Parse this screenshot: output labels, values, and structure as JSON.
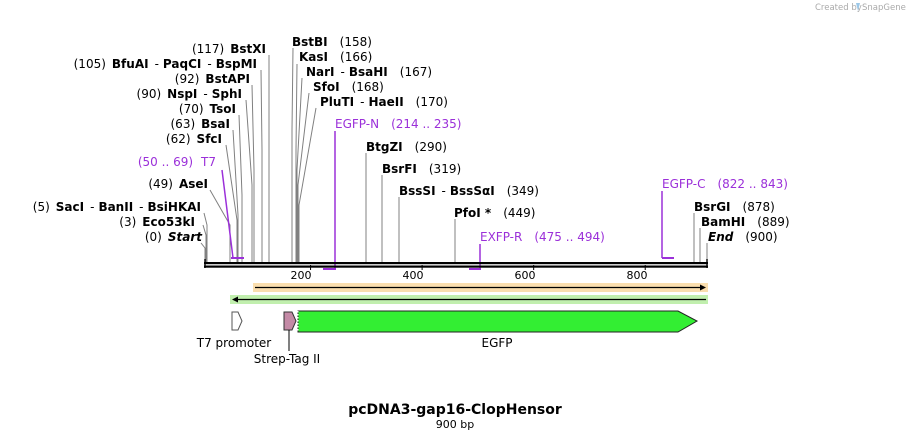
{
  "credit": {
    "prefix": "Created by",
    "product": "SnapGene"
  },
  "plasmid": {
    "name": "pcDNA3-gap16-ClopHensor",
    "length_label": "900 bp",
    "length": 900
  },
  "axis_ticks": [
    "200",
    "400",
    "600",
    "800"
  ],
  "axis_tick_values": [
    200,
    400,
    600,
    800
  ],
  "sites": [
    {
      "pos": 0,
      "parts": [
        [
          "(0)",
          "pos"
        ],
        [
          "Start",
          "italic"
        ]
      ]
    },
    {
      "pos": 3,
      "parts": [
        [
          "(3)",
          "pos"
        ],
        [
          "Eco53kI",
          "enz"
        ]
      ]
    },
    {
      "pos": 5,
      "parts": [
        [
          "(5)",
          "pos"
        ],
        [
          "SacI",
          "enz"
        ],
        [
          "-",
          "pos"
        ],
        [
          "BanII",
          "enz"
        ],
        [
          "-",
          "pos"
        ],
        [
          "BsiHKAI",
          "enz"
        ]
      ]
    },
    {
      "pos": 49,
      "parts": [
        [
          "(49)",
          "pos"
        ],
        [
          "AseI",
          "enz"
        ]
      ]
    },
    {
      "pos": 62,
      "parts": [
        [
          "(62)",
          "pos"
        ],
        [
          "SfcI",
          "enz"
        ]
      ]
    },
    {
      "pos": 63,
      "parts": [
        [
          "(63)",
          "pos"
        ],
        [
          "BsaI",
          "enz"
        ]
      ]
    },
    {
      "pos": 70,
      "parts": [
        [
          "(70)",
          "pos"
        ],
        [
          "TsoI",
          "enz"
        ]
      ]
    },
    {
      "pos": 90,
      "parts": [
        [
          "(90)",
          "pos"
        ],
        [
          "NspI",
          "enz"
        ],
        [
          "-",
          "pos"
        ],
        [
          "SphI",
          "enz"
        ]
      ]
    },
    {
      "pos": 92,
      "parts": [
        [
          "(92)",
          "pos"
        ],
        [
          "BstAPI",
          "enz"
        ]
      ]
    },
    {
      "pos": 105,
      "parts": [
        [
          "(105)",
          "pos"
        ],
        [
          "BfuAI",
          "enz"
        ],
        [
          "-",
          "pos"
        ],
        [
          "PaqCI",
          "enz"
        ],
        [
          "-",
          "pos"
        ],
        [
          "BspMI",
          "enz"
        ]
      ]
    },
    {
      "pos": 117,
      "parts": [
        [
          "(117)",
          "pos"
        ],
        [
          "BstXI",
          "enz"
        ]
      ]
    },
    {
      "pos": 158,
      "parts": [
        [
          "BstBI",
          "enz"
        ],
        [
          "(158)",
          "pos"
        ]
      ]
    },
    {
      "pos": 166,
      "parts": [
        [
          "KasI",
          "enz"
        ],
        [
          "(166)",
          "pos"
        ]
      ]
    },
    {
      "pos": 167,
      "parts": [
        [
          "NarI",
          "enz"
        ],
        [
          "-",
          "pos"
        ],
        [
          "BsaHI",
          "enz"
        ],
        [
          "(167)",
          "pos"
        ]
      ]
    },
    {
      "pos": 168,
      "parts": [
        [
          "SfoI",
          "enz"
        ],
        [
          "(168)",
          "pos"
        ]
      ]
    },
    {
      "pos": 170,
      "parts": [
        [
          "PluTI",
          "enz"
        ],
        [
          "-",
          "pos"
        ],
        [
          "HaeII",
          "enz"
        ],
        [
          "(170)",
          "pos"
        ]
      ]
    },
    {
      "pos": 290,
      "parts": [
        [
          "BtgZI",
          "enz"
        ],
        [
          "(290)",
          "pos"
        ]
      ]
    },
    {
      "pos": 319,
      "parts": [
        [
          "BsrFI",
          "enz"
        ],
        [
          "(319)",
          "pos"
        ]
      ]
    },
    {
      "pos": 349,
      "parts": [
        [
          "BssSI",
          "enz"
        ],
        [
          "-",
          "pos"
        ],
        [
          "BssSαI",
          "enz"
        ],
        [
          "(349)",
          "pos"
        ]
      ]
    },
    {
      "pos": 449,
      "parts": [
        [
          "PfoI *",
          "enz"
        ],
        [
          "(449)",
          "pos"
        ]
      ]
    },
    {
      "pos": 878,
      "parts": [
        [
          "BsrGI",
          "enz"
        ],
        [
          "(878)",
          "pos"
        ]
      ]
    },
    {
      "pos": 889,
      "parts": [
        [
          "BamHI",
          "enz"
        ],
        [
          "(889)",
          "pos"
        ]
      ]
    },
    {
      "pos": 900,
      "parts": [
        [
          "End",
          "enz italic"
        ],
        [
          "(900)",
          "pos"
        ]
      ]
    }
  ],
  "primers": [
    {
      "name": "T7",
      "range": "(50 .. 69)",
      "start": 50,
      "end": 69
    },
    {
      "name": "EGFP-N",
      "range": "(214 .. 235)",
      "start": 214,
      "end": 235
    },
    {
      "name": "EXFP-R",
      "range": "(475 .. 494)",
      "start": 475,
      "end": 494
    },
    {
      "name": "EGFP-C",
      "range": "(822 .. 843)",
      "start": 822,
      "end": 843
    }
  ],
  "features": [
    {
      "name": "T7 promoter",
      "start": 50,
      "end": 69,
      "color": "#ffffff"
    },
    {
      "name": "Strep-Tag II",
      "start": 142,
      "end": 162,
      "color": "#c48aa6"
    },
    {
      "name": "EGFP",
      "start": 163,
      "end": 880,
      "color": "#33ee33"
    }
  ],
  "orf_colors": {
    "forward": "#f5c26b",
    "reverse": "#a6e88c"
  }
}
